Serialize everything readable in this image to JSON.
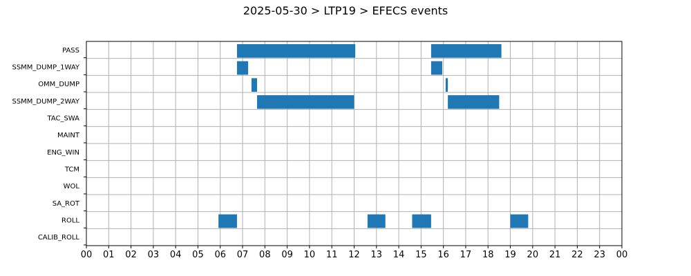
{
  "chart_data": {
    "type": "bar",
    "orientation": "horizontal-timeline",
    "title": "2025-05-30 > LTP19 > EFECS events",
    "xlabel": "",
    "ylabel": "",
    "x_unit": "hour",
    "xlim": [
      0,
      24
    ],
    "x_ticks": [
      0,
      1,
      2,
      3,
      4,
      5,
      6,
      7,
      8,
      9,
      10,
      11,
      12,
      13,
      14,
      15,
      16,
      17,
      18,
      19,
      20,
      21,
      22,
      23,
      24
    ],
    "x_tick_labels": [
      "00",
      "01",
      "02",
      "03",
      "04",
      "05",
      "06",
      "07",
      "08",
      "09",
      "10",
      "11",
      "12",
      "13",
      "14",
      "15",
      "16",
      "17",
      "18",
      "19",
      "20",
      "21",
      "22",
      "23",
      "00"
    ],
    "grid": true,
    "bar_color": "#1f77b4",
    "categories": [
      "PASS",
      "SSMM_DUMP_1WAY",
      "OMM_DUMP",
      "SSMM_DUMP_2WAY",
      "TAC_SWA",
      "MAINT",
      "ENG_WIN",
      "TCM",
      "WOL",
      "SA_ROT",
      "ROLL",
      "CALIB_ROLL"
    ],
    "series": [
      {
        "category": "PASS",
        "intervals": [
          [
            6.75,
            12.05
          ],
          [
            15.45,
            18.6
          ]
        ]
      },
      {
        "category": "SSMM_DUMP_1WAY",
        "intervals": [
          [
            6.75,
            7.25
          ],
          [
            15.45,
            15.95
          ]
        ]
      },
      {
        "category": "OMM_DUMP",
        "intervals": [
          [
            7.4,
            7.65
          ],
          [
            16.1,
            16.2
          ]
        ]
      },
      {
        "category": "SSMM_DUMP_2WAY",
        "intervals": [
          [
            7.65,
            12.0
          ],
          [
            16.2,
            18.5
          ]
        ]
      },
      {
        "category": "TAC_SWA",
        "intervals": []
      },
      {
        "category": "MAINT",
        "intervals": []
      },
      {
        "category": "ENG_WIN",
        "intervals": []
      },
      {
        "category": "TCM",
        "intervals": []
      },
      {
        "category": "WOL",
        "intervals": []
      },
      {
        "category": "SA_ROT",
        "intervals": []
      },
      {
        "category": "ROLL",
        "intervals": [
          [
            5.92,
            6.75
          ],
          [
            12.6,
            13.4
          ],
          [
            14.6,
            15.45
          ],
          [
            19.0,
            19.8
          ]
        ]
      },
      {
        "category": "CALIB_ROLL",
        "intervals": []
      }
    ]
  }
}
